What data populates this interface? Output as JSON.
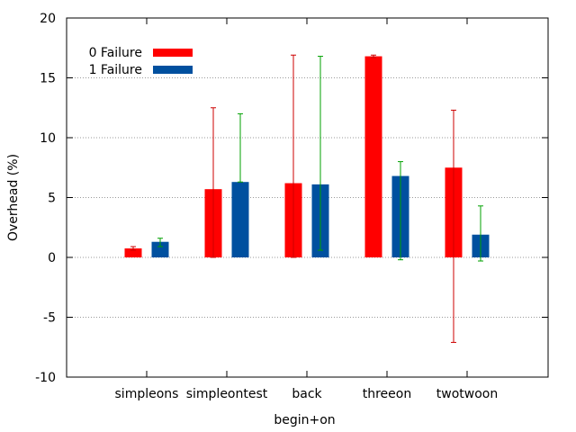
{
  "chart_data": {
    "type": "bar",
    "xlabel": "begin+on",
    "ylabel": "Overhead (%)",
    "ylim": [
      -10,
      20
    ],
    "yticks": [
      -10,
      -5,
      0,
      5,
      10,
      15,
      20
    ],
    "grid": "horizontal dotted",
    "legend_position": "top-left",
    "categories": [
      "simpleons",
      "simpleontest",
      "back",
      "threeon",
      "twotwoon"
    ],
    "series": [
      {
        "name": "0 Failure",
        "color": "#ff0000",
        "error_color": "#cc0000",
        "values": [
          0.75,
          5.7,
          6.2,
          16.8,
          7.5
        ],
        "err_low": [
          0.6,
          0.0,
          0.0,
          16.7,
          -7.1
        ],
        "err_high": [
          0.9,
          12.5,
          16.9,
          16.9,
          12.3
        ]
      },
      {
        "name": "1 Failure",
        "color": "#00509f",
        "error_color": "#00a000",
        "values": [
          1.3,
          6.3,
          6.1,
          6.8,
          1.9
        ],
        "err_low": [
          0.9,
          6.3,
          0.6,
          -0.2,
          -0.3
        ],
        "err_high": [
          1.6,
          12.0,
          16.8,
          8.0,
          4.3
        ]
      }
    ]
  }
}
